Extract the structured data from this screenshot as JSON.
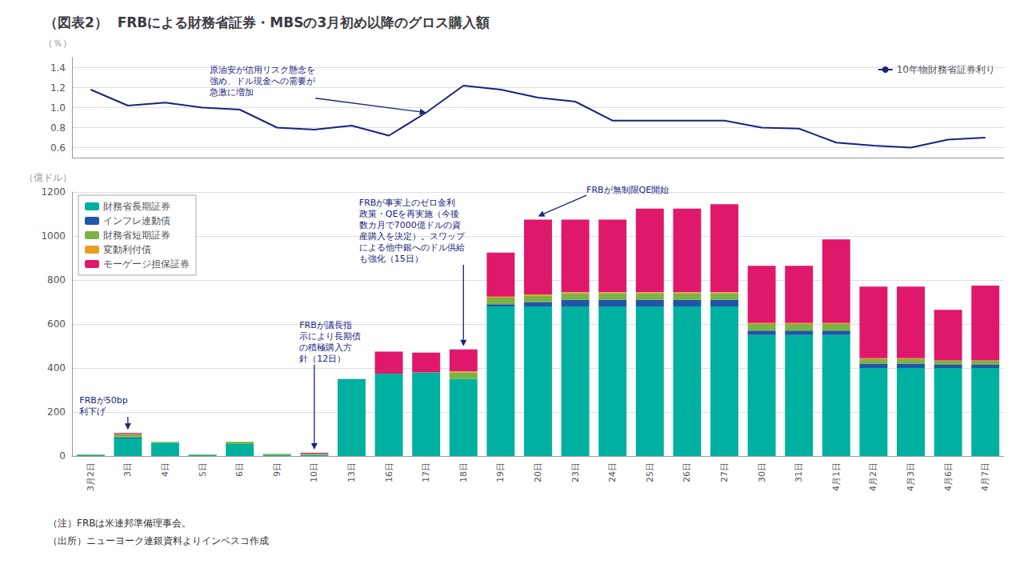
{
  "chart_data": [
    {
      "type": "line",
      "title": "（図表2）  FRBによる財務省証券・MBSの3月初め以降のグロス購入額",
      "ylabel": "（％）",
      "categories": [
        "3月2日",
        "3日",
        "4日",
        "5日",
        "6日",
        "9日",
        "10日",
        "13日",
        "16日",
        "17日",
        "18日",
        "19日",
        "20日",
        "23日",
        "24日",
        "25日",
        "26日",
        "27日",
        "30日",
        "31日",
        "4月1日",
        "4月2日",
        "4月3日",
        "4月6日",
        "4月7日"
      ],
      "series": [
        {
          "name": "10年物財務省証券利り",
          "color": "#1a237e",
          "values": [
            1.18,
            1.02,
            1.05,
            1.0,
            0.98,
            0.8,
            0.78,
            0.82,
            0.72,
            0.95,
            1.22,
            1.18,
            1.1,
            1.06,
            0.87,
            0.87,
            0.87,
            0.87,
            0.8,
            0.79,
            0.65,
            0.62,
            0.6,
            0.68,
            0.7
          ]
        }
      ],
      "ylim": [
        0.5,
        1.5
      ],
      "yticks": [
        0.6,
        0.8,
        {
          "value": 1.0,
          "label": "1.0"
        },
        1.2,
        1.4
      ],
      "grid": true,
      "legend": "upper right",
      "tick_labels": "y",
      "annotations": [
        {
          "text": "原油安が信用リスク懸念を\n強め、ドル現金への需要が\n急激に増加",
          "category": "17日"
        }
      ]
    },
    {
      "type": "bar",
      "stacked": true,
      "ylabel": "（億ドル）",
      "categories": [
        "3月2日",
        "3日",
        "4日",
        "5日",
        "6日",
        "9日",
        "10日",
        "13日",
        "16日",
        "17日",
        "18日",
        "19日",
        "20日",
        "23日",
        "24日",
        "25日",
        "26日",
        "27日",
        "30日",
        "31日",
        "4月1日",
        "4月2日",
        "4月3日",
        "4月6日",
        "4月7日"
      ],
      "series": [
        {
          "name": "財務省長期証券",
          "color": "#00b0a0",
          "values": [
            5,
            80,
            60,
            5,
            55,
            5,
            5,
            350,
            375,
            380,
            350,
            680,
            680,
            680,
            680,
            680,
            680,
            680,
            550,
            550,
            550,
            400,
            400,
            400,
            400
          ]
        },
        {
          "name": "インフレ連動債",
          "color": "#2255aa",
          "values": [
            0,
            5,
            0,
            0,
            0,
            0,
            0,
            0,
            0,
            0,
            0,
            10,
            20,
            30,
            30,
            30,
            30,
            30,
            20,
            20,
            20,
            20,
            20,
            15,
            15
          ]
        },
        {
          "name": "財務省短期証券",
          "color": "#7cb342",
          "values": [
            2,
            15,
            5,
            2,
            10,
            5,
            5,
            0,
            0,
            0,
            30,
            30,
            30,
            30,
            30,
            30,
            30,
            30,
            30,
            30,
            30,
            20,
            20,
            20,
            20
          ]
        },
        {
          "name": "変動利付債",
          "color": "#e8a020",
          "values": [
            0,
            0,
            0,
            0,
            0,
            0,
            0,
            0,
            0,
            0,
            5,
            5,
            5,
            5,
            5,
            5,
            5,
            5,
            5,
            5,
            5,
            5,
            5,
            0,
            0
          ]
        },
        {
          "name": "モーゲージ担保証券",
          "color": "#e0186c",
          "values": [
            0,
            5,
            0,
            0,
            0,
            0,
            5,
            0,
            100,
            90,
            100,
            200,
            340,
            330,
            330,
            380,
            380,
            400,
            260,
            260,
            380,
            325,
            325,
            230,
            340
          ]
        }
      ],
      "ylim": [
        0,
        1200
      ],
      "yticks": [
        0,
        200,
        400,
        600,
        800,
        1000,
        1200
      ],
      "grid": true,
      "legend": "upper left",
      "annotations": [
        {
          "text": "FRBが50bp\n利下げ",
          "category": "3日"
        },
        {
          "text": "FRBが議長指\n示により長期債\nの積極購入方\n針（12日）",
          "category": "10日"
        },
        {
          "text": "FRBが事実上のゼロ金利\n政策・QEを再実施（今後\n数カ月で7000億ドルの資\n産購入を決定）。スワップ\nによる他中銀へのドル供給\nも強化（15日）",
          "category": "18日"
        },
        {
          "text": "FRBが無制限QE開始",
          "category": "20日"
        }
      ],
      "notes": [
        "（注）FRBは米連邦準備理事会。",
        "（出所）ニューヨーク連銀資料よりインベスコ作成"
      ]
    }
  ]
}
